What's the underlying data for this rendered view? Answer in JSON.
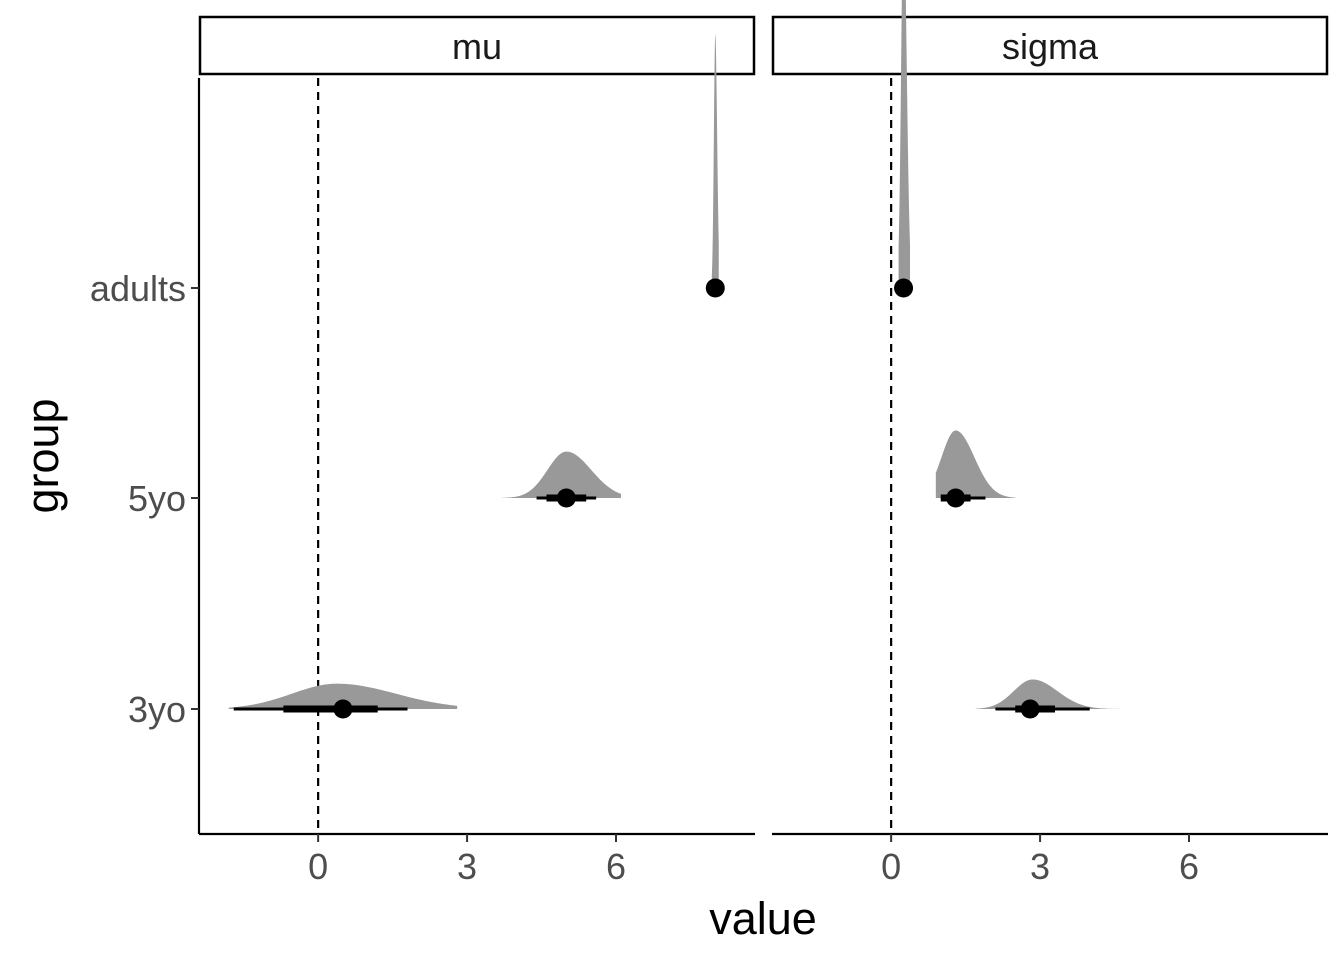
{
  "chart_data": {
    "type": "halfeye",
    "xlabel": "value",
    "ylabel": "group",
    "categories": [
      "3yo",
      "5yo",
      "adults"
    ],
    "xlim": [
      -2.4,
      8.8
    ],
    "xticks": [
      0,
      3,
      6
    ],
    "reference_line": 0,
    "grid": false,
    "colors": {
      "density": "#999999",
      "interval": "#000000",
      "point": "#000000"
    },
    "facets": [
      {
        "label": "mu",
        "groups": [
          {
            "group": "3yo",
            "point": 0.5,
            "inner": [
              -0.7,
              1.2
            ],
            "outer": [
              -1.7,
              1.8
            ],
            "range": [
              -1.8,
              2.8
            ],
            "scale": 0.06
          },
          {
            "group": "5yo",
            "point": 5.0,
            "inner": [
              4.6,
              5.4
            ],
            "outer": [
              4.4,
              5.6
            ],
            "range": [
              3.7,
              6.1
            ],
            "scale": 0.11
          },
          {
            "group": "adults",
            "point": 8.0,
            "inner": [
              7.97,
              8.03
            ],
            "outer": [
              7.95,
              8.05
            ],
            "range": [
              7.93,
              8.07
            ],
            "scale": 0.6
          }
        ]
      },
      {
        "label": "sigma",
        "groups": [
          {
            "group": "3yo",
            "point": 2.8,
            "inner": [
              2.5,
              3.3
            ],
            "outer": [
              2.1,
              4.0
            ],
            "range": [
              1.7,
              5.5
            ],
            "scale": 0.07
          },
          {
            "group": "5yo",
            "point": 1.3,
            "inner": [
              1.0,
              1.6
            ],
            "outer": [
              1.0,
              1.9
            ],
            "range": [
              0.9,
              2.5
            ],
            "scale": 0.16
          },
          {
            "group": "adults",
            "point": 0.25,
            "inner": [
              0.2,
              0.3
            ],
            "outer": [
              0.18,
              0.33
            ],
            "range": [
              0.15,
              0.38
            ],
            "scale": 0.9
          }
        ]
      }
    ]
  }
}
